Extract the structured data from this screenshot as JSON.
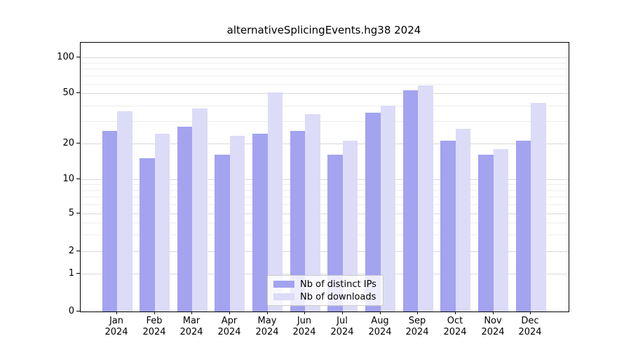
{
  "chart_data": {
    "type": "bar",
    "title": "alternativeSplicingEvents.hg38 2024",
    "year": "2024",
    "months": [
      "Jan",
      "Feb",
      "Mar",
      "Apr",
      "May",
      "Jun",
      "Jul",
      "Aug",
      "Sep",
      "Oct",
      "Nov",
      "Dec"
    ],
    "categories": [
      "Jan 2024",
      "Feb 2024",
      "Mar 2024",
      "Apr 2024",
      "May 2024",
      "Jun 2024",
      "Jul 2024",
      "Aug 2024",
      "Sep 2024",
      "Oct 2024",
      "Nov 2024",
      "Dec 2024"
    ],
    "series": [
      {
        "name": "Nb of distinct IPs",
        "color": "#a3a3f0",
        "values": [
          25,
          15,
          27,
          16,
          24,
          25,
          16,
          35,
          53,
          21,
          16,
          21
        ]
      },
      {
        "name": "Nb of downloads",
        "color": "#dcdcf8",
        "values": [
          36,
          24,
          38,
          23,
          51,
          34,
          21,
          40,
          58,
          26,
          18,
          42
        ]
      }
    ],
    "y_axis": {
      "scale": "log-with-zero",
      "major_ticks": [
        0,
        1,
        2,
        5,
        10,
        20,
        50,
        100
      ],
      "minor_gridlines": [
        3,
        4,
        6,
        7,
        8,
        9,
        30,
        40,
        60,
        70,
        80,
        90
      ]
    },
    "xlabel": "",
    "ylabel": "",
    "grid": "horizontal",
    "legend_position": "lower center inside plot"
  },
  "colors": {
    "series_distinct_ips": "#a3a3f0",
    "series_downloads": "#dcdcf8",
    "grid_major": "#d9d9d9",
    "grid_minor": "#ededed",
    "axis": "#000000",
    "legend_border": "#cccccc",
    "background": "#ffffff"
  }
}
